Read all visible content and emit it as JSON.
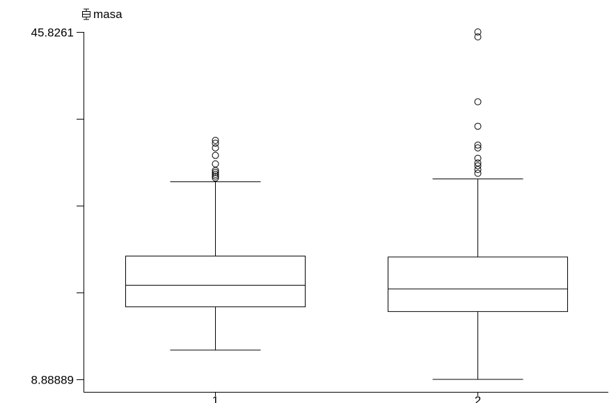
{
  "chart_data": {
    "type": "boxplot",
    "title": "",
    "xlabel": "",
    "ylabel": "",
    "legend": {
      "label": "masa",
      "icon": "boxplot-icon",
      "placement": "top-left"
    },
    "ylim": [
      8.88889,
      45.8261
    ],
    "yticks": [
      8.88889,
      18.12319,
      27.35749,
      36.5918,
      45.8261
    ],
    "ytick_labels": [
      "8.88889",
      "",
      "",
      "",
      "45.8261"
    ],
    "categories": [
      "1",
      "2"
    ],
    "boxes": [
      {
        "category": "1",
        "whisker_low": 12.0,
        "q1": 16.6,
        "median": 18.9,
        "q3": 22.0,
        "whisker_high": 29.9,
        "outliers": [
          30.3,
          30.5,
          30.7,
          30.9,
          31.1,
          31.8,
          32.7,
          33.5,
          34.0,
          34.3
        ]
      },
      {
        "category": "2",
        "whisker_low": 8.88889,
        "q1": 16.1,
        "median": 18.5,
        "q3": 21.9,
        "whisker_high": 30.2,
        "outliers": [
          30.8,
          31.2,
          31.6,
          31.9,
          32.4,
          33.5,
          33.8,
          35.8,
          38.4,
          45.3,
          45.8261
        ]
      }
    ],
    "colors": {
      "stroke": "#000000",
      "fill": "#ffffff"
    },
    "grid": false
  }
}
